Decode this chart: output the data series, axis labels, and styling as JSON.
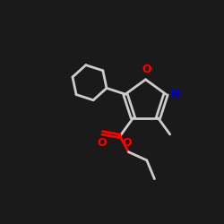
{
  "background_color": "#1a1a1a",
  "bond_color": "#000000",
  "line_color": "#000000",
  "oxygen_color": "#ff0000",
  "nitrogen_color": "#0000cd",
  "line_width": 2.0,
  "figsize": [
    2.5,
    2.5
  ],
  "dpi": 100,
  "xlim": [
    0,
    10
  ],
  "ylim": [
    0,
    10
  ]
}
